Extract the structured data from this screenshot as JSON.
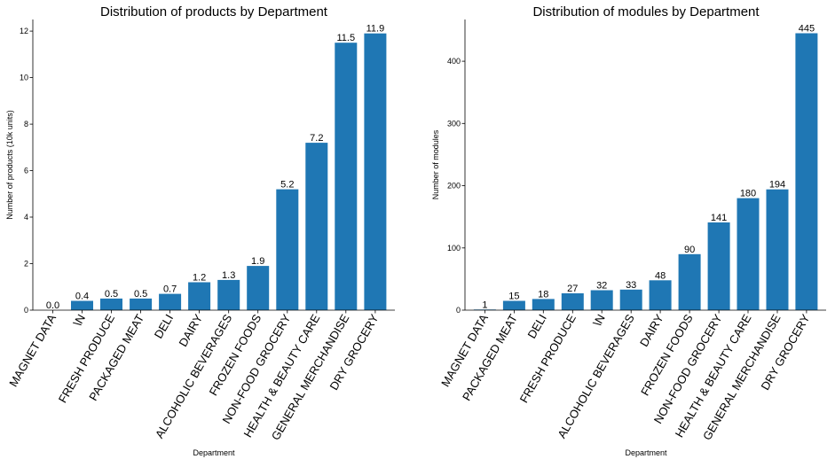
{
  "chart_data": [
    {
      "type": "bar",
      "title": "Distribution of products by Department",
      "xlabel": "Department",
      "ylabel": "Number of products (10k units)",
      "categories": [
        "MAGNET DATA",
        "\\N",
        "FRESH PRODUCE",
        "PACKAGED MEAT",
        "DELI",
        "DAIRY",
        "ALCOHOLIC BEVERAGES",
        "FROZEN FOODS",
        "NON-FOOD GROCERY",
        "HEALTH & BEAUTY CARE",
        "GENERAL MERCHANDISE",
        "DRY GROCERY"
      ],
      "values": [
        0.0,
        0.4,
        0.5,
        0.5,
        0.7,
        1.2,
        1.3,
        1.9,
        5.2,
        7.2,
        11.5,
        11.9
      ],
      "value_labels": [
        "0.0",
        "0.4",
        "0.5",
        "0.5",
        "0.7",
        "1.2",
        "1.3",
        "1.9",
        "5.2",
        "7.2",
        "11.5",
        "11.9"
      ],
      "yticks": [
        0,
        2,
        4,
        6,
        8,
        10,
        12
      ],
      "ylim": [
        0,
        12.5
      ],
      "grid": false,
      "bar_color": "#1f77b4"
    },
    {
      "type": "bar",
      "title": "Distribution of modules by Department",
      "xlabel": "Department",
      "ylabel": "Number of modules",
      "categories": [
        "MAGNET DATA",
        "PACKAGED MEAT",
        "DELI",
        "FRESH PRODUCE",
        "\\N",
        "ALCOHOLIC BEVERAGES",
        "DAIRY",
        "FROZEN FOODS",
        "NON-FOOD GROCERY",
        "HEALTH & BEAUTY CARE",
        "GENERAL MERCHANDISE",
        "DRY GROCERY"
      ],
      "values": [
        1,
        15,
        18,
        27,
        32,
        33,
        48,
        90,
        141,
        180,
        194,
        445
      ],
      "value_labels": [
        "1",
        "15",
        "18",
        "27",
        "32",
        "33",
        "48",
        "90",
        "141",
        "180",
        "194",
        "445"
      ],
      "yticks": [
        0,
        100,
        200,
        300,
        400
      ],
      "ylim": [
        0,
        467
      ],
      "grid": false,
      "bar_color": "#1f77b4"
    }
  ]
}
